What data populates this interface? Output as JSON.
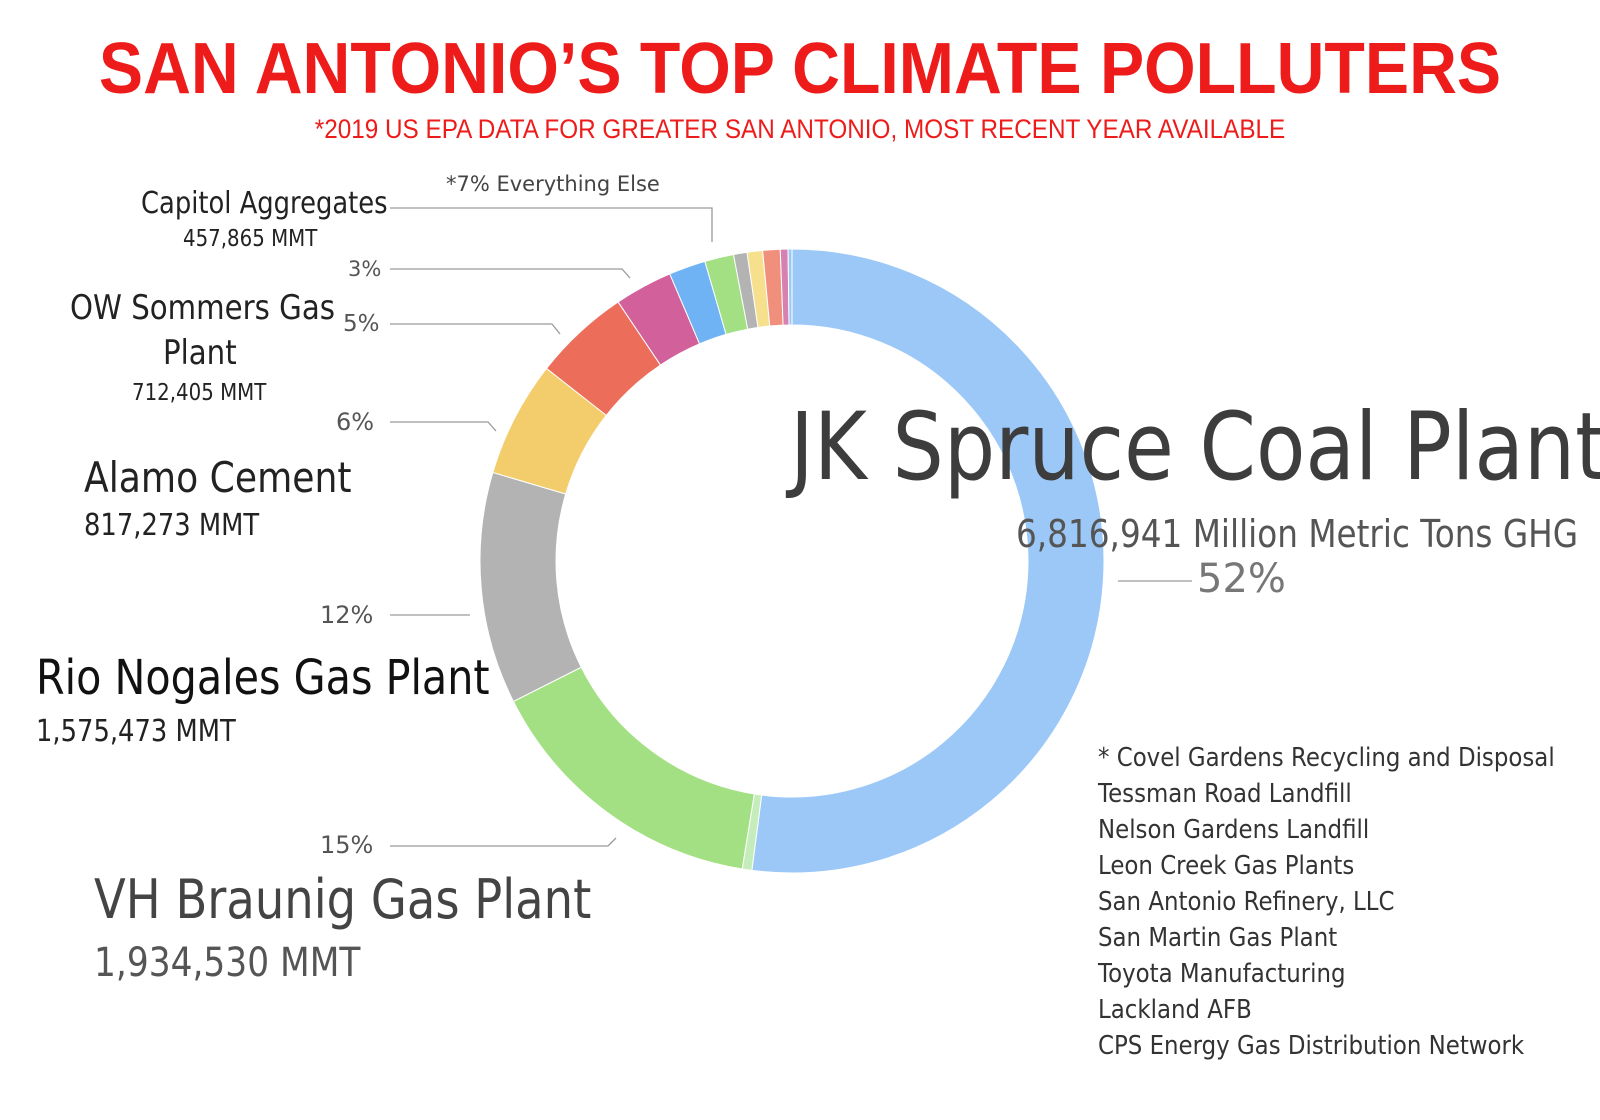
{
  "title": "SAN ANTONIO’S TOP CLIMATE POLLUTERS",
  "subtitle": "*2019 US EPA DATA  FOR GREATER SAN ANTONIO, MOST RECENT YEAR AVAILABLE",
  "labels": {
    "jk_name": "JK Spruce Coal Plant",
    "jk_value": "6,816,941 Million Metric Tons GHG",
    "jk_pct": "52%",
    "vh_name": "VH Braunig Gas Plant",
    "vh_value": "1,934,530 MMT",
    "vh_pct": "15%",
    "rio_name": "Rio Nogales Gas Plant",
    "rio_value": "1,575,473 MMT",
    "rio_pct": "12%",
    "alamo_name": "Alamo Cement",
    "alamo_value": "817,273 MMT",
    "alamo_pct": "6%",
    "ow_name_1": "OW Sommers Gas",
    "ow_name_2": "Plant",
    "ow_value": "712,405 MMT",
    "ow_pct": "5%",
    "capitol_name": "Capitol Aggregates",
    "capitol_value": "457,865 MMT",
    "capitol_pct": "3%",
    "everything_else": "*7% Everything Else"
  },
  "others_list": [
    "* Covel Gardens Recycling and Disposal",
    "Tessman Road Landfill",
    "Nelson Gardens Landfill",
    "Leon Creek Gas Plants",
    "San Antonio Refinery, LLC",
    "San Martin Gas Plant",
    "Toyota Manufacturing",
    "Lackland AFB",
    "CPS Energy Gas Distribution Network"
  ],
  "colors": {
    "title": "#ee1b1b",
    "leader": "#9a9a9a"
  },
  "chart_data": {
    "type": "pie",
    "donut": true,
    "title": "SAN ANTONIO’S TOP CLIMATE POLLUTERS",
    "unit": "MMT",
    "slices": [
      {
        "name": "JK Spruce Coal Plant",
        "value": 6816941,
        "percent": 52,
        "color": "#9cc8f7"
      },
      {
        "name": "",
        "value": null,
        "percent": 0.5,
        "color": "#c5edbb"
      },
      {
        "name": "VH Braunig Gas Plant",
        "value": 1934530,
        "percent": 15,
        "color": "#a3e083"
      },
      {
        "name": "Rio Nogales Gas Plant",
        "value": 1575473,
        "percent": 12,
        "color": "#b3b3b3"
      },
      {
        "name": "Alamo Cement",
        "value": 817273,
        "percent": 6,
        "color": "#f3cd6c"
      },
      {
        "name": "OW Sommers Gas Plant",
        "value": 712405,
        "percent": 5,
        "color": "#ec6d5a"
      },
      {
        "name": "Capitol Aggregates",
        "value": 457865,
        "percent": 3,
        "color": "#d2619b"
      },
      {
        "name": "",
        "value": null,
        "percent": 1.9,
        "color": "#6fb3f5"
      },
      {
        "name": "",
        "value": null,
        "percent": 1.5,
        "color": "#a3e083"
      },
      {
        "name": "",
        "value": null,
        "percent": 0.7,
        "color": "#b3b3b3"
      },
      {
        "name": "",
        "value": null,
        "percent": 0.8,
        "color": "#f6e08e"
      },
      {
        "name": "",
        "value": null,
        "percent": 0.9,
        "color": "#ef8f7c"
      },
      {
        "name": "",
        "value": null,
        "percent": 0.4,
        "color": "#d781b0"
      },
      {
        "name": "",
        "value": null,
        "percent": 0.2,
        "color": "#9cc8f7"
      }
    ]
  }
}
